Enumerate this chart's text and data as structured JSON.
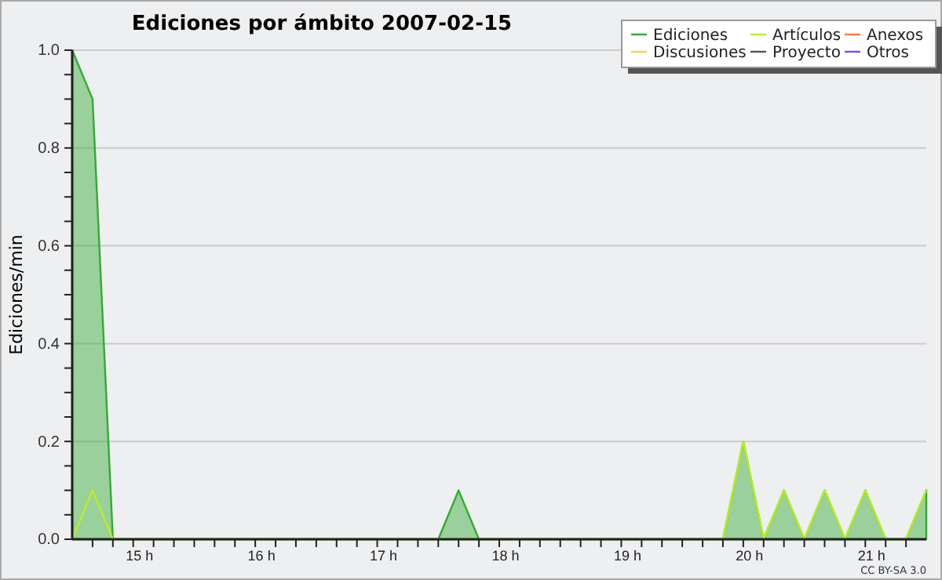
{
  "chart_data": {
    "type": "area",
    "title": "Ediciones por ámbito  2007-02-15",
    "ylabel": "Ediciones/min",
    "annotations": [
      "CC BY-SA 3.0"
    ],
    "series": [
      {
        "name": "Ediciones",
        "color": "#33aa33",
        "x": [
          14.5,
          14.6667,
          14.8333,
          17.5,
          17.6667,
          17.8333,
          19.8333,
          20,
          20.1667,
          20.3333,
          20.5,
          20.6667,
          20.8333,
          21,
          21.1667,
          21.3333,
          21.5
        ],
        "values": [
          1,
          0.9,
          0,
          0,
          0.1,
          0,
          0,
          0.2,
          0,
          0.1,
          0,
          0.1,
          0,
          0.1,
          0,
          0,
          0.1
        ]
      },
      {
        "name": "Artículos",
        "type": "line",
        "color": "#bbee22",
        "x": [
          14.5,
          14.6667,
          14.8333,
          19.8333,
          20,
          20.1667,
          20.3333,
          20.5,
          20.6667,
          20.8333,
          21,
          21.1667,
          21.3333,
          21.5
        ],
        "values": [
          0,
          0.1,
          0,
          0,
          0.2,
          0,
          0.1,
          0,
          0.1,
          0,
          0.1,
          0,
          0,
          0.1
        ]
      },
      {
        "name": "Anexos",
        "type": "line",
        "color": "#ff7744"
      },
      {
        "name": "Discusiones",
        "type": "line",
        "color": "#ffcc44"
      },
      {
        "name": "Proyecto",
        "type": "line",
        "color": "#555555"
      },
      {
        "name": "Otros",
        "type": "line",
        "color": "#8844ee"
      }
    ],
    "xlim": [
      14.5,
      21.5
    ],
    "xticks": [
      {
        "value": 14.6667,
        "label": null
      },
      {
        "value": 14.8333,
        "label": null
      },
      {
        "value": 15,
        "label": "15 h"
      },
      {
        "value": 15.1667,
        "label": null
      },
      {
        "value": 15.3333,
        "label": null
      },
      {
        "value": 15.5,
        "label": null
      },
      {
        "value": 15.6667,
        "label": null
      },
      {
        "value": 15.8333,
        "label": null
      },
      {
        "value": 16,
        "label": "16 h"
      },
      {
        "value": 16.1667,
        "label": null
      },
      {
        "value": 16.3333,
        "label": null
      },
      {
        "value": 16.5,
        "label": null
      },
      {
        "value": 16.6667,
        "label": null
      },
      {
        "value": 16.8333,
        "label": null
      },
      {
        "value": 17,
        "label": "17 h"
      },
      {
        "value": 17.1667,
        "label": null
      },
      {
        "value": 17.3333,
        "label": null
      },
      {
        "value": 17.5,
        "label": null
      },
      {
        "value": 17.6667,
        "label": null
      },
      {
        "value": 17.8333,
        "label": null
      },
      {
        "value": 18,
        "label": "18 h"
      },
      {
        "value": 18.1667,
        "label": null
      },
      {
        "value": 18.3333,
        "label": null
      },
      {
        "value": 18.5,
        "label": null
      },
      {
        "value": 18.6667,
        "label": null
      },
      {
        "value": 18.8333,
        "label": null
      },
      {
        "value": 19,
        "label": "19 h"
      },
      {
        "value": 19.1667,
        "label": null
      },
      {
        "value": 19.3333,
        "label": null
      },
      {
        "value": 19.5,
        "label": null
      },
      {
        "value": 19.6667,
        "label": null
      },
      {
        "value": 19.8333,
        "label": null
      },
      {
        "value": 20,
        "label": "20 h"
      },
      {
        "value": 20.1667,
        "label": null
      },
      {
        "value": 20.3333,
        "label": null
      },
      {
        "value": 20.5,
        "label": null
      },
      {
        "value": 20.6667,
        "label": null
      },
      {
        "value": 20.8333,
        "label": null
      },
      {
        "value": 21,
        "label": "21 h"
      },
      {
        "value": 21.1667,
        "label": null
      },
      {
        "value": 21.3333,
        "label": null
      }
    ],
    "ylim": [
      0,
      1
    ],
    "yticks": [
      {
        "value": 0,
        "label": "0.0"
      },
      {
        "value": 0.05,
        "label": null
      },
      {
        "value": 0.1,
        "label": null
      },
      {
        "value": 0.15,
        "label": null
      },
      {
        "value": 0.2,
        "label": "0.2"
      },
      {
        "value": 0.25,
        "label": null
      },
      {
        "value": 0.3,
        "label": null
      },
      {
        "value": 0.35,
        "label": null
      },
      {
        "value": 0.4,
        "label": "0.4"
      },
      {
        "value": 0.45,
        "label": null
      },
      {
        "value": 0.5,
        "label": null
      },
      {
        "value": 0.55,
        "label": null
      },
      {
        "value": 0.6,
        "label": "0.6"
      },
      {
        "value": 0.65,
        "label": null
      },
      {
        "value": 0.7,
        "label": null
      },
      {
        "value": 0.75,
        "label": null
      },
      {
        "value": 0.8,
        "label": "0.8"
      },
      {
        "value": 0.85,
        "label": null
      },
      {
        "value": 0.9,
        "label": null
      },
      {
        "value": 0.95,
        "label": null
      },
      {
        "value": 1,
        "label": "1.0"
      }
    ],
    "grid": "y",
    "legend": "top right"
  }
}
